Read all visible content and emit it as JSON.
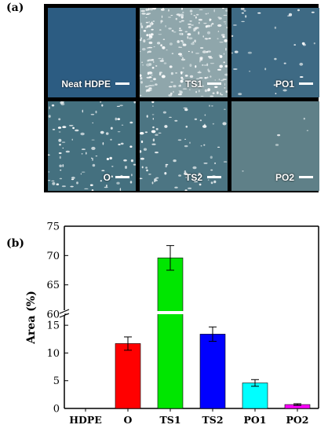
{
  "panel_a": {
    "label": "(a)",
    "tiles": [
      {
        "label": "Neat HDPE",
        "bg": "#2c5c82",
        "speck": 0
      },
      {
        "label": "TS1",
        "bg": "#8fa6ab",
        "speck": 1.0
      },
      {
        "label": "PO1",
        "bg": "#3e6a84",
        "speck": 0.12
      },
      {
        "label": "O",
        "bg": "#44707f",
        "speck": 0.35
      },
      {
        "label": "TS2",
        "bg": "#4c7583",
        "speck": 0.3
      },
      {
        "label": "PO2",
        "bg": "#5f8088",
        "speck": 0.02
      }
    ]
  },
  "panel_b": {
    "label": "(b)"
  },
  "chart_data": {
    "type": "bar",
    "ylabel": "Area (%)",
    "categories": [
      "HDPE",
      "O",
      "TS1",
      "TS2",
      "PO1",
      "PO2"
    ],
    "values": [
      0,
      11.7,
      69.6,
      13.4,
      4.6,
      0.7
    ],
    "errors": [
      0,
      1.2,
      2.1,
      1.3,
      0.6,
      0.15
    ],
    "colors": [
      "#ffffff",
      "#ff0000",
      "#00e600",
      "#0000ff",
      "#00ffff",
      "#ff00ff"
    ],
    "axis_break": {
      "lower": [
        0,
        17
      ],
      "upper": [
        60,
        75
      ]
    },
    "yticks": [
      0,
      5,
      10,
      15,
      60,
      65,
      70,
      75
    ]
  }
}
